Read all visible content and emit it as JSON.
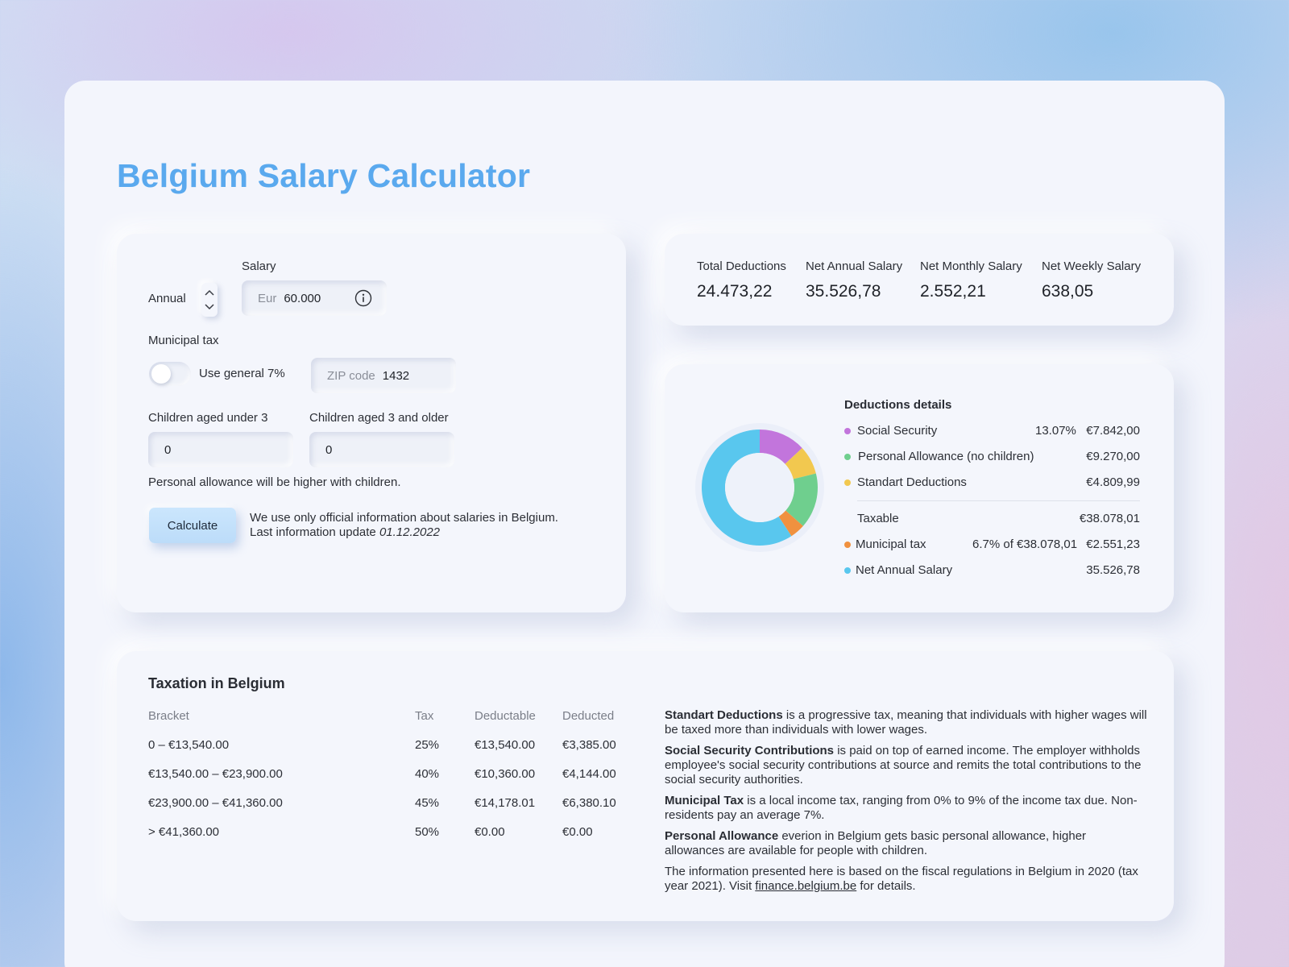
{
  "page": {
    "title": "Belgium Salary Calculator"
  },
  "form": {
    "period_label": "Annual",
    "salary_label": "Salary",
    "currency": "Eur",
    "salary_value": "60.000",
    "municipal_label": "Municipal tax",
    "toggle_label": "Use general 7%",
    "toggle_on": false,
    "zip_placeholder": "ZIP code",
    "zip_value": "1432",
    "children_under3_label": "Children aged under 3",
    "children_under3_value": "0",
    "children_3plus_label": "Children aged 3 and older",
    "children_3plus_value": "0",
    "allowance_note": "Personal allowance will be higher with children.",
    "calculate_label": "Calculate",
    "info_line1": "We use only official information about salaries in Belgium.",
    "info_line2_prefix": "Last information update",
    "info_line2_date": "01.12.2022"
  },
  "summary": {
    "items": [
      {
        "label": "Total Deductions",
        "value": "24.473,22"
      },
      {
        "label": "Net Annual Salary",
        "value": "35.526,78"
      },
      {
        "label": "Net Monthly Salary",
        "value": "2.552,21"
      },
      {
        "label": "Net Weekly Salary",
        "value": "638,05"
      }
    ]
  },
  "deductions": {
    "title": "Deductions details",
    "rows": [
      {
        "label": "Social Security",
        "pct": "13.07%",
        "value": "€7.842,00",
        "color": "#c275dc"
      },
      {
        "label": "Personal Allowance (no children)",
        "pct": "",
        "value": "€9.270,00",
        "color": "#6fcf8e"
      },
      {
        "label": "Standart Deductions",
        "pct": "",
        "value": "€4.809,99",
        "color": "#f2c84f"
      }
    ],
    "taxable_label": "Taxable",
    "taxable_value": "€38.078,01",
    "rows2": [
      {
        "label": "Municipal tax",
        "pct": "6.7% of €38.078,01",
        "value": "€2.551,23",
        "color": "#f0913f"
      },
      {
        "label": "Net Annual Salary",
        "pct": "",
        "value": "35.526,78",
        "color": "#59c7ee"
      }
    ]
  },
  "chart_data": {
    "type": "pie",
    "donut": true,
    "slices": [
      {
        "name": "Social Security",
        "value": 7842.0,
        "color": "#c275dc"
      },
      {
        "name": "Standart Deductions",
        "value": 4809.99,
        "color": "#f2c84f"
      },
      {
        "name": "Personal Allowance (no children)",
        "value": 9270.0,
        "color": "#6fcf8e"
      },
      {
        "name": "Municipal tax",
        "value": 2551.23,
        "color": "#f0913f"
      },
      {
        "name": "Net Annual Salary",
        "value": 35526.78,
        "color": "#59c7ee"
      }
    ]
  },
  "taxation": {
    "title": "Taxation in Belgium",
    "headers": [
      "Bracket",
      "Tax",
      "Deductable",
      "Deducted"
    ],
    "rows": [
      [
        "0 – €13,540.00",
        "25%",
        "€13,540.00",
        "€3,385.00"
      ],
      [
        "€13,540.00 – €23,900.00",
        "40%",
        "€10,360.00",
        "€4,144.00"
      ],
      [
        "€23,900.00 – €41,360.00",
        "45%",
        "€14,178.01",
        "€6,380.10"
      ],
      [
        "> €41,360.00",
        "50%",
        "€0.00",
        "€0.00"
      ]
    ],
    "info": [
      {
        "bold": "Standart Deductions",
        "text": " is a progressive tax, meaning that individuals with higher wages will be taxed more than individuals with lower wages."
      },
      {
        "bold": "Social Security Contributions",
        "text": " is paid on top of earned income. The employer withholds employee's social security contributions at source and remits the total contributions to the social security authorities."
      },
      {
        "bold": "Municipal Tax",
        "text": " is a local income tax, ranging from 0% to 9% of the income tax due. Non-residents pay an average 7%."
      },
      {
        "bold": "Personal Allowance",
        "text": " everion in Belgium gets basic personal allowance, higher allowances are available for people with children."
      }
    ],
    "footer_text": "The information presented here is based on the fiscal regulations in Belgium in 2020 (tax year 2021). Visit ",
    "footer_link": "finance.belgium.be",
    "footer_tail": " for details."
  }
}
